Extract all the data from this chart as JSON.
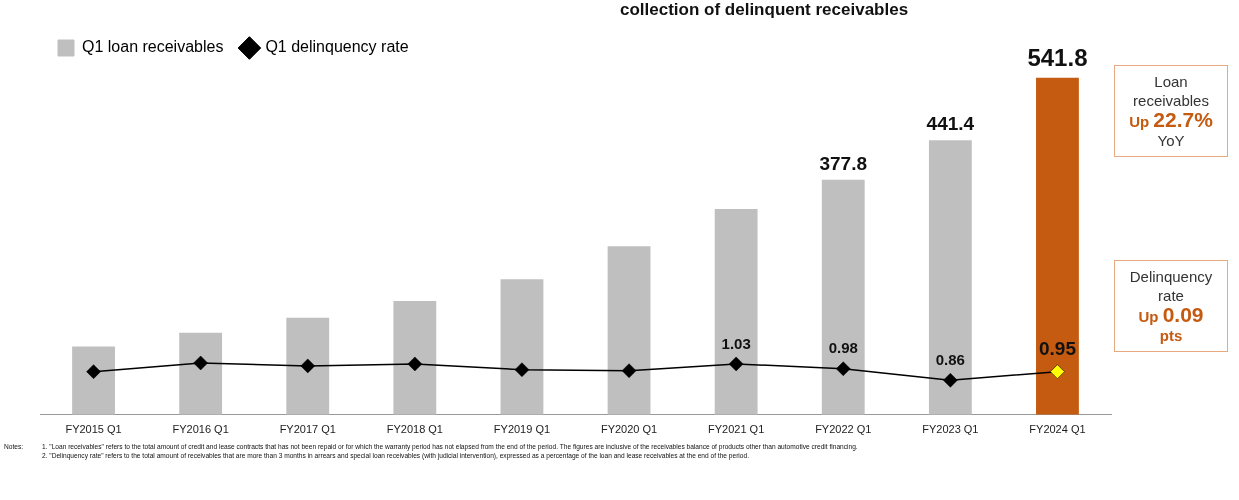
{
  "chart_data": {
    "type": "bar",
    "title": "collection of delinquent receivables",
    "categories": [
      "FY2015 Q1",
      "FY2016 Q1",
      "FY2017 Q1",
      "FY2018 Q1",
      "FY2019 Q1",
      "FY2020 Q1",
      "FY2021 Q1",
      "FY2022 Q1",
      "FY2023 Q1",
      "FY2024 Q1"
    ],
    "series": [
      {
        "name": "Q1 loan receivables",
        "colors": [
          "#bfbfbf",
          "#bfbfbf",
          "#bfbfbf",
          "#bfbfbf",
          "#bfbfbf",
          "#bfbfbf",
          "#bfbfbf",
          "#bfbfbf",
          "#bfbfbf",
          "#c55a11"
        ],
        "values": [
          110,
          132,
          156,
          183,
          218,
          271,
          331,
          377.8,
          441.4,
          541.8
        ],
        "value_labels": [
          null,
          null,
          null,
          null,
          null,
          null,
          null,
          "377.8",
          "441.4",
          "541.8"
        ]
      },
      {
        "name": "Q1 delinquency rate",
        "type": "line",
        "axis": "y2",
        "color": "#000000",
        "colors": [
          "#000000",
          "#000000",
          "#000000",
          "#000000",
          "#000000",
          "#000000",
          "#000000",
          "#000000",
          "#000000",
          "#ffff00"
        ],
        "values": [
          0.95,
          1.04,
          1.01,
          1.03,
          0.97,
          0.96,
          1.03,
          0.98,
          0.86,
          0.95
        ],
        "value_labels": [
          null,
          null,
          null,
          null,
          null,
          null,
          "1.03",
          "0.98",
          "0.86",
          "0.95"
        ]
      }
    ],
    "tick_labels": "x",
    "grid": false,
    "legend": "top left",
    "marker": "diamond",
    "line_style": "solid",
    "annotations": [
      "Loan receivables",
      "Up 22.7%",
      "YoY",
      "Delinquency rate",
      "Up 0.09",
      "pts",
      "Notes:",
      "1. \"Loan receivables\" refers to the total amount of credit and lease contracts that has not been repaid or for which the warranty period has not elapsed from the end of the period. The figures are inclusive of the receivables balance of products other than automotive credit financing.",
      "2. \"Delinquency rate\" refers to the total amount of receivables that are more than 3 months in arrears and special loan receivables (with judicial intervention), expressed as a percentage of the loan and lease receivables at the end of the period."
    ]
  }
}
